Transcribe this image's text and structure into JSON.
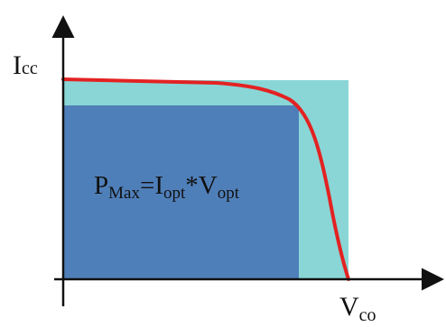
{
  "diagram": {
    "y_axis_label": "I",
    "y_axis_label_sub": "cc",
    "x_axis_label": "V",
    "x_axis_label_sub": "co",
    "formula": {
      "p": "P",
      "p_sub": "Max",
      "eq_i": "=I",
      "i_sub": "opt",
      "mul_v": "*V",
      "v_sub": "opt"
    }
  },
  "colors": {
    "outer_rect": "#8ad6d6",
    "inner_rect": "#4f7fb9",
    "curve": "#e32222",
    "axes": "#111111"
  }
}
